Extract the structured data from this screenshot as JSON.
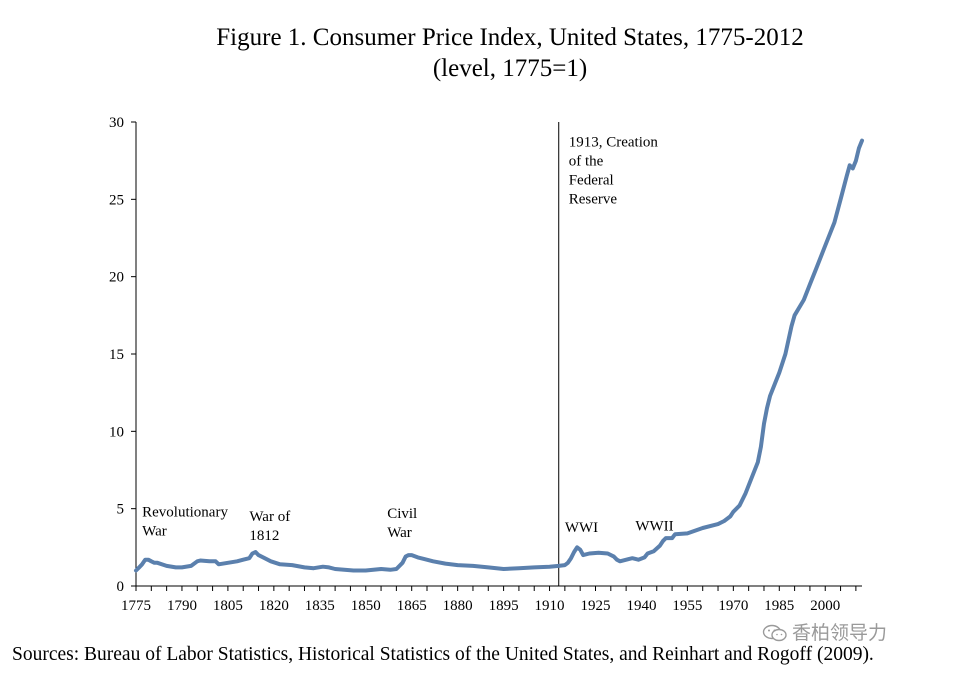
{
  "chart_data": {
    "type": "line",
    "title": "Figure 1. Consumer Price Index, United States, 1775-2012",
    "subtitle": "(level, 1775=1)",
    "xlabel": "",
    "ylabel": "",
    "xlim": [
      1775,
      2012
    ],
    "ylim": [
      0,
      30
    ],
    "grid": false,
    "x_ticks": [
      1775,
      1790,
      1805,
      1820,
      1835,
      1850,
      1865,
      1880,
      1895,
      1910,
      1925,
      1940,
      1955,
      1970,
      1985,
      2000
    ],
    "x_tick_labels": [
      "1775",
      "1790",
      "1805",
      "1820",
      "1835",
      "1850",
      "1865",
      "1880",
      "1895",
      "1910",
      "1925",
      "1940",
      "1955",
      "1970",
      "1985",
      "2000"
    ],
    "y_ticks": [
      0,
      5,
      10,
      15,
      20,
      25,
      30
    ],
    "y_tick_labels": [
      "0",
      "5",
      "10",
      "15",
      "20",
      "25",
      "30"
    ],
    "series": [
      {
        "name": "CPI",
        "color": "#5b80ad",
        "x": [
          1775,
          1776,
          1777,
          1778,
          1779,
          1780,
          1781,
          1782,
          1785,
          1788,
          1790,
          1793,
          1795,
          1796,
          1799,
          1801,
          1802,
          1805,
          1808,
          1810,
          1812,
          1813,
          1814,
          1815,
          1817,
          1819,
          1822,
          1826,
          1830,
          1833,
          1836,
          1838,
          1840,
          1843,
          1846,
          1850,
          1855,
          1858,
          1860,
          1862,
          1863,
          1864,
          1865,
          1867,
          1869,
          1872,
          1876,
          1880,
          1885,
          1890,
          1895,
          1900,
          1905,
          1910,
          1913,
          1915,
          1916,
          1917,
          1918,
          1919,
          1920,
          1921,
          1923,
          1926,
          1929,
          1931,
          1932,
          1933,
          1936,
          1937,
          1939,
          1941,
          1942,
          1944,
          1946,
          1947,
          1948,
          1950,
          1951,
          1955,
          1960,
          1965,
          1967,
          1969,
          1970,
          1972,
          1974,
          1976,
          1978,
          1979,
          1980,
          1981,
          1982,
          1985,
          1987,
          1989,
          1990,
          1993,
          1995,
          1997,
          2000,
          2003,
          2005,
          2007,
          2008,
          2009,
          2010,
          2011,
          2012
        ],
        "y": [
          1.0,
          1.2,
          1.4,
          1.7,
          1.7,
          1.6,
          1.5,
          1.5,
          1.3,
          1.2,
          1.2,
          1.3,
          1.6,
          1.65,
          1.6,
          1.6,
          1.4,
          1.5,
          1.6,
          1.7,
          1.8,
          2.1,
          2.2,
          2.0,
          1.8,
          1.6,
          1.4,
          1.35,
          1.2,
          1.15,
          1.25,
          1.2,
          1.1,
          1.05,
          1.0,
          1.0,
          1.1,
          1.05,
          1.1,
          1.5,
          1.9,
          2.0,
          2.0,
          1.85,
          1.75,
          1.6,
          1.45,
          1.35,
          1.3,
          1.2,
          1.1,
          1.15,
          1.2,
          1.25,
          1.3,
          1.35,
          1.5,
          1.8,
          2.2,
          2.5,
          2.35,
          2.0,
          2.1,
          2.15,
          2.1,
          1.9,
          1.7,
          1.6,
          1.75,
          1.8,
          1.7,
          1.85,
          2.1,
          2.25,
          2.6,
          2.9,
          3.1,
          3.1,
          3.35,
          3.4,
          3.75,
          4.0,
          4.2,
          4.5,
          4.8,
          5.2,
          6.0,
          7.0,
          8.0,
          9.0,
          10.5,
          11.5,
          12.3,
          13.8,
          15.0,
          16.8,
          17.5,
          18.5,
          19.5,
          20.5,
          22.0,
          23.5,
          25.0,
          26.5,
          27.2,
          27.0,
          27.5,
          28.3,
          28.8
        ]
      }
    ],
    "vertical_markers": [
      {
        "x": 1913,
        "label_lines": [
          "1913, Creation",
          "of the",
          "Federal",
          "Reserve"
        ]
      }
    ],
    "annotations": [
      {
        "id": "revolutionary-war",
        "year": 1777,
        "level": 4.5,
        "lines": [
          "Revolutionary",
          "War"
        ]
      },
      {
        "id": "war-of-1812",
        "year": 1812,
        "level": 4.2,
        "lines": [
          "War of",
          "1812"
        ]
      },
      {
        "id": "civil-war",
        "year": 1857,
        "level": 4.4,
        "lines": [
          "Civil",
          "War"
        ]
      },
      {
        "id": "wwi",
        "year": 1915,
        "level": 3.5,
        "lines": [
          "WWI"
        ]
      },
      {
        "id": "wwii",
        "year": 1938,
        "level": 3.6,
        "lines": [
          "WWII"
        ]
      }
    ]
  },
  "source_text": "Sources: Bureau of Labor Statistics, Historical Statistics of the United States, and Reinhart and Rogoff (2009).",
  "watermark": {
    "text": "香柏领导力",
    "icon": "wechat-icon"
  }
}
